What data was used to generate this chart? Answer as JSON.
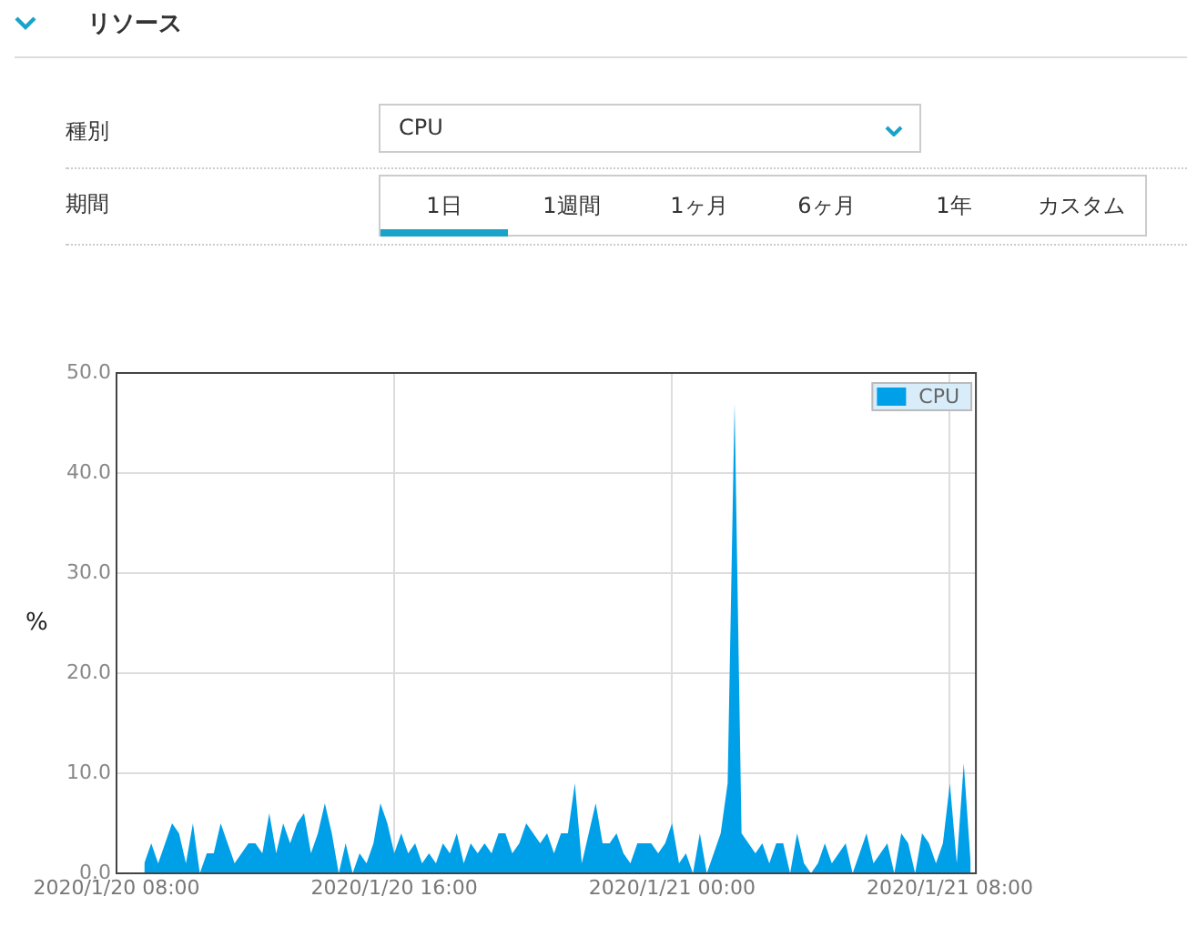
{
  "chart_data": {
    "type": "area",
    "ylabel": "%",
    "annotations": [
      "リソース",
      "種別",
      "CPU",
      "期間",
      "1日",
      "1週間",
      "1ヶ月",
      "6ヶ月",
      "1年",
      "カスタム"
    ],
    "x": [
      "2020-01-20T08:48",
      "2020-01-20T09:00",
      "2020-01-20T09:12",
      "2020-01-20T09:24",
      "2020-01-20T09:36",
      "2020-01-20T09:48",
      "2020-01-20T10:00",
      "2020-01-20T10:12",
      "2020-01-20T10:24",
      "2020-01-20T10:36",
      "2020-01-20T10:48",
      "2020-01-20T11:00",
      "2020-01-20T11:12",
      "2020-01-20T11:24",
      "2020-01-20T11:36",
      "2020-01-20T11:48",
      "2020-01-20T12:00",
      "2020-01-20T12:12",
      "2020-01-20T12:24",
      "2020-01-20T12:36",
      "2020-01-20T12:48",
      "2020-01-20T13:00",
      "2020-01-20T13:12",
      "2020-01-20T13:24",
      "2020-01-20T13:36",
      "2020-01-20T13:48",
      "2020-01-20T14:00",
      "2020-01-20T14:12",
      "2020-01-20T14:24",
      "2020-01-20T14:36",
      "2020-01-20T14:48",
      "2020-01-20T15:00",
      "2020-01-20T15:12",
      "2020-01-20T15:24",
      "2020-01-20T15:36",
      "2020-01-20T15:48",
      "2020-01-20T16:00",
      "2020-01-20T16:12",
      "2020-01-20T16:24",
      "2020-01-20T16:36",
      "2020-01-20T16:48",
      "2020-01-20T17:00",
      "2020-01-20T17:12",
      "2020-01-20T17:24",
      "2020-01-20T17:36",
      "2020-01-20T17:48",
      "2020-01-20T18:00",
      "2020-01-20T18:12",
      "2020-01-20T18:24",
      "2020-01-20T18:36",
      "2020-01-20T18:48",
      "2020-01-20T19:00",
      "2020-01-20T19:12",
      "2020-01-20T19:24",
      "2020-01-20T19:36",
      "2020-01-20T19:48",
      "2020-01-20T20:00",
      "2020-01-20T20:12",
      "2020-01-20T20:24",
      "2020-01-20T20:36",
      "2020-01-20T20:48",
      "2020-01-20T21:00",
      "2020-01-20T21:12",
      "2020-01-20T21:24",
      "2020-01-20T21:36",
      "2020-01-20T21:48",
      "2020-01-20T22:00",
      "2020-01-20T22:12",
      "2020-01-20T22:24",
      "2020-01-20T22:36",
      "2020-01-20T22:48",
      "2020-01-20T23:00",
      "2020-01-20T23:12",
      "2020-01-20T23:24",
      "2020-01-20T23:36",
      "2020-01-20T23:48",
      "2020-01-21T00:00",
      "2020-01-21T00:12",
      "2020-01-21T00:24",
      "2020-01-21T00:36",
      "2020-01-21T00:48",
      "2020-01-21T01:00",
      "2020-01-21T01:12",
      "2020-01-21T01:24",
      "2020-01-21T01:36",
      "2020-01-21T01:48",
      "2020-01-21T02:00",
      "2020-01-21T02:12",
      "2020-01-21T02:24",
      "2020-01-21T02:36",
      "2020-01-21T02:48",
      "2020-01-21T03:00",
      "2020-01-21T03:12",
      "2020-01-21T03:24",
      "2020-01-21T03:36",
      "2020-01-21T03:48",
      "2020-01-21T04:00",
      "2020-01-21T04:12",
      "2020-01-21T04:24",
      "2020-01-21T04:36",
      "2020-01-21T04:48",
      "2020-01-21T05:00",
      "2020-01-21T05:12",
      "2020-01-21T05:24",
      "2020-01-21T05:36",
      "2020-01-21T05:48",
      "2020-01-21T06:00",
      "2020-01-21T06:12",
      "2020-01-21T06:24",
      "2020-01-21T06:36",
      "2020-01-21T06:48",
      "2020-01-21T07:00",
      "2020-01-21T07:12",
      "2020-01-21T07:24",
      "2020-01-21T07:36",
      "2020-01-21T07:48",
      "2020-01-21T08:00",
      "2020-01-21T08:12",
      "2020-01-21T08:24",
      "2020-01-21T08:36"
    ],
    "series": [
      {
        "name": "CPU",
        "color": "#00a0e9",
        "values": [
          1,
          3,
          1,
          3,
          5,
          4,
          1,
          5,
          0,
          2,
          2,
          5,
          3,
          1,
          2,
          3,
          3,
          2,
          6,
          2,
          5,
          3,
          5,
          6,
          2,
          4,
          7,
          4,
          0,
          3,
          0,
          2,
          1,
          3,
          7,
          5,
          2,
          4,
          2,
          3,
          1,
          2,
          1,
          3,
          2,
          4,
          1,
          3,
          2,
          3,
          2,
          4,
          4,
          2,
          3,
          5,
          4,
          3,
          4,
          2,
          4,
          4,
          9,
          1,
          4,
          7,
          3,
          3,
          4,
          2,
          1,
          3,
          3,
          3,
          2,
          3,
          5,
          1,
          2,
          0,
          4,
          0,
          2,
          4,
          9,
          47,
          4,
          3,
          2,
          3,
          1,
          3,
          3,
          0,
          4,
          1,
          0,
          1,
          3,
          1,
          2,
          3,
          0,
          2,
          4,
          1,
          2,
          3,
          0,
          4,
          3,
          0,
          4,
          3,
          1,
          3,
          9,
          1,
          11,
          1
        ]
      }
    ],
    "xlim": [
      "2020-01-20T08:00",
      "2020-01-21T08:45"
    ],
    "xticks": [
      {
        "value": "2020-01-20T08:00",
        "label": "2020/1/20 08:00"
      },
      {
        "value": "2020-01-20T16:00",
        "label": "2020/1/20 16:00"
      },
      {
        "value": "2020-01-21T00:00",
        "label": "2020/1/21 00:00"
      },
      {
        "value": "2020-01-21T08:00",
        "label": "2020/1/21 08:00"
      }
    ],
    "ylim": [
      0,
      50
    ],
    "yticks": [
      {
        "value": 0,
        "label": "0.0"
      },
      {
        "value": 10,
        "label": "10.0"
      },
      {
        "value": 20,
        "label": "20.0"
      },
      {
        "value": 30,
        "label": "30.0"
      },
      {
        "value": 40,
        "label": "40.0"
      },
      {
        "value": 50,
        "label": "50.0"
      }
    ],
    "grid": true,
    "legend": "top right"
  }
}
